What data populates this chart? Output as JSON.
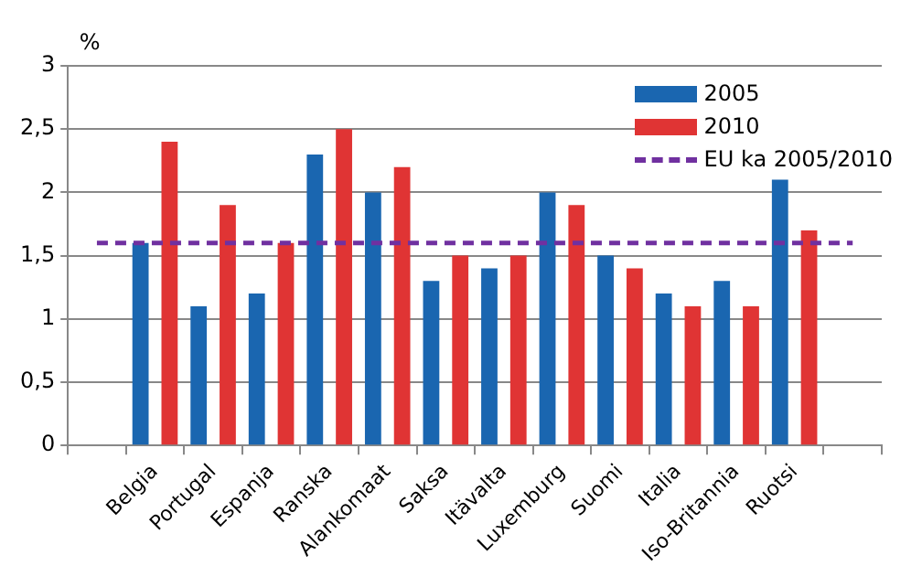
{
  "chart_data": {
    "type": "bar",
    "ylabel": "%",
    "categories": [
      null,
      "Belgia",
      "Portugal",
      "Espanja",
      "Ranska",
      "Alankomaat",
      "Saksa",
      "Itävalta",
      "Luxemburg",
      "Suomi",
      "Italia",
      "Iso-Britannia",
      "Ruotsi",
      null
    ],
    "series": [
      {
        "name": "2005",
        "color": "#1a66b0",
        "values": [
          null,
          1.6,
          1.1,
          1.2,
          2.3,
          2.0,
          1.3,
          1.4,
          2.0,
          1.5,
          1.2,
          1.3,
          2.1,
          null
        ]
      },
      {
        "name": "2010",
        "color": "#e03434",
        "values": [
          null,
          2.4,
          1.9,
          1.6,
          2.5,
          2.2,
          1.5,
          1.5,
          1.9,
          1.4,
          1.1,
          1.1,
          1.7,
          null
        ]
      },
      {
        "name": "EU ka 2005/2010",
        "type": "line",
        "color": "#7030a0",
        "line_style": "dashed",
        "marker": "none",
        "values": [
          1.6,
          1.6,
          1.6,
          1.6,
          1.6,
          1.6,
          1.6,
          1.6,
          1.6,
          1.6,
          1.6,
          1.6,
          1.6,
          1.6
        ]
      }
    ],
    "ylim": [
      0,
      3
    ],
    "yticks": [
      0,
      {
        "value": 0.5,
        "label": "0,5"
      },
      1,
      {
        "value": 1.5,
        "label": "1,5"
      },
      2,
      {
        "value": 2.5,
        "label": "2,5"
      },
      3
    ],
    "grid": "y",
    "legend": "top right"
  }
}
